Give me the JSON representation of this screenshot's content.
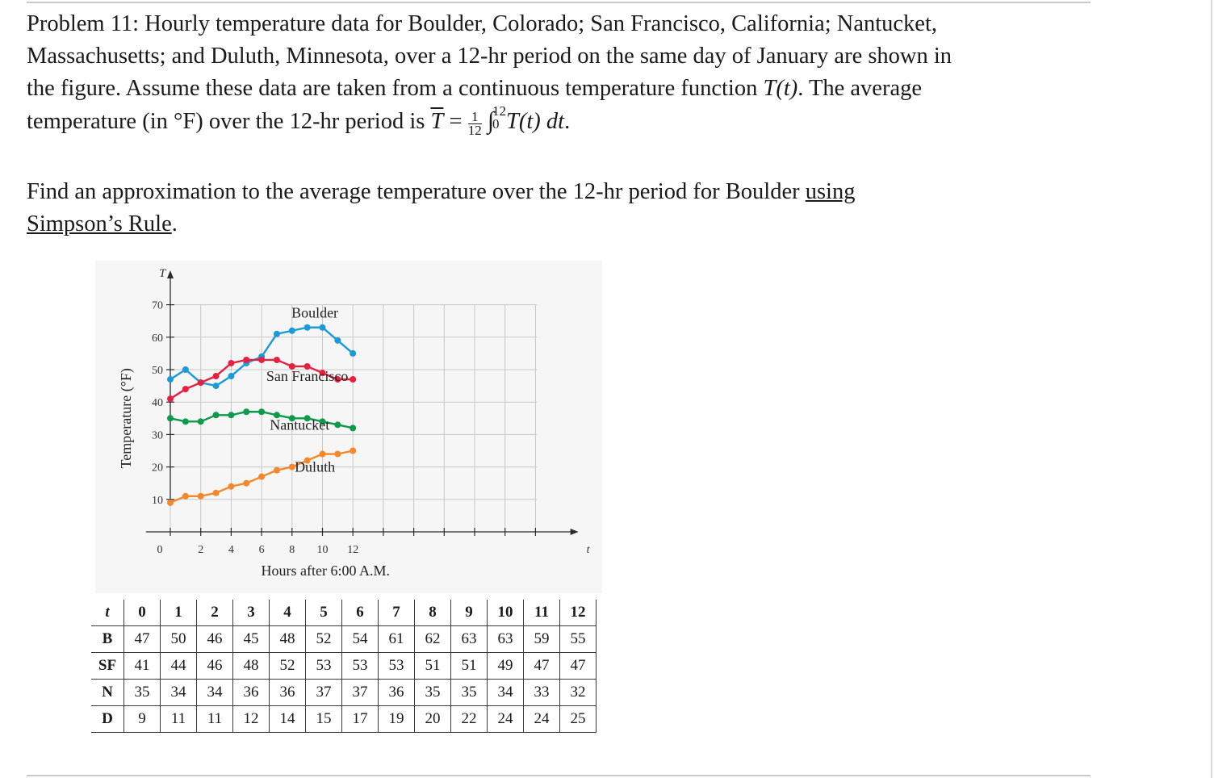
{
  "problem": {
    "line1": "Problem 11:  Hourly temperature data for Boulder, Colorado; San Francisco, California; Nantucket,",
    "line2": "Massachusetts; and Duluth, Minnesota, over a 12-hr period on the same day of January are shown in",
    "line3_a": "the figure. Assume these data are taken from a continuous temperature function ",
    "line3_fn": "T(t)",
    "line3_b": ". The average",
    "line4_a": "temperature (in °F) over the 12-hr period is ",
    "line4_T": "T",
    "line4_eq": " = ",
    "frac_num": "1",
    "frac_den": "12",
    "int_symbol": "∫",
    "int_upper": "12",
    "int_lower": "0",
    "integrand": "T(t) dt",
    "line4_end": "."
  },
  "question": {
    "line1_a": "Find an approximation to the average temperature over the 12-hr period for Boulder ",
    "line1_u": "using ",
    "line2_u": "Simpson’s Rule",
    "line2_end": "."
  },
  "chart_data": {
    "type": "line",
    "ylabel": "Temperature (°F)",
    "xlabel": "Hours after 6:00 A.M.",
    "yaxis_symbol": "T",
    "xaxis_symbol": "t",
    "x": [
      0,
      1,
      2,
      3,
      4,
      5,
      6,
      7,
      8,
      9,
      10,
      11,
      12
    ],
    "xlim": [
      -0.8,
      13.2
    ],
    "ylim": [
      0,
      75
    ],
    "x_ticks": [
      0,
      1,
      2,
      3,
      4,
      5,
      6,
      7,
      8,
      9,
      10,
      11,
      12
    ],
    "x_tick_labels": [
      "0",
      "2",
      "4",
      "6",
      "8",
      "10",
      "12"
    ],
    "x_tick_label_values": [
      0,
      2,
      4,
      6,
      8,
      10,
      12
    ],
    "y_ticks": [
      10,
      20,
      30,
      40,
      50,
      60,
      70
    ],
    "y_tick_labels": [
      "10",
      "20",
      "30",
      "40",
      "50",
      "60",
      "70"
    ],
    "grid": true,
    "series": [
      {
        "name": "Boulder",
        "color": "#1a9ad6",
        "values": [
          47,
          50,
          46,
          45,
          48,
          52,
          54,
          61,
          62,
          63,
          63,
          59,
          55
        ]
      },
      {
        "name": "San Francisco",
        "color": "#e8203f",
        "values": [
          41,
          44,
          46,
          48,
          52,
          53,
          53,
          53,
          51,
          51,
          49,
          47,
          47
        ]
      },
      {
        "name": "Nantucket",
        "color": "#0d9a4a",
        "values": [
          35,
          34,
          34,
          36,
          36,
          37,
          37,
          36,
          35,
          35,
          34,
          33,
          32
        ]
      },
      {
        "name": "Duluth",
        "color": "#f4882a",
        "values": [
          9,
          11,
          11,
          12,
          14,
          15,
          17,
          19,
          20,
          22,
          24,
          24,
          25
        ]
      }
    ],
    "series_label_anchor": [
      {
        "x": 9.5,
        "y": 66
      },
      {
        "x": 9.0,
        "y": 46.5
      },
      {
        "x": 8.5,
        "y": 31.5
      },
      {
        "x": 9.5,
        "y": 18.5
      }
    ]
  },
  "table": {
    "header_label": "t",
    "columns": [
      "0",
      "1",
      "2",
      "3",
      "4",
      "5",
      "6",
      "7",
      "8",
      "9",
      "10",
      "11",
      "12"
    ],
    "rows": [
      {
        "label": "B",
        "values": [
          "47",
          "50",
          "46",
          "45",
          "48",
          "52",
          "54",
          "61",
          "62",
          "63",
          "63",
          "59",
          "55"
        ]
      },
      {
        "label": "SF",
        "values": [
          "41",
          "44",
          "46",
          "48",
          "52",
          "53",
          "53",
          "53",
          "51",
          "51",
          "49",
          "47",
          "47"
        ]
      },
      {
        "label": "N",
        "values": [
          "35",
          "34",
          "34",
          "36",
          "36",
          "37",
          "37",
          "36",
          "35",
          "35",
          "34",
          "33",
          "32"
        ]
      },
      {
        "label": "D",
        "values": [
          "9",
          "11",
          "11",
          "12",
          "14",
          "15",
          "17",
          "19",
          "20",
          "22",
          "24",
          "24",
          "25"
        ]
      }
    ]
  }
}
